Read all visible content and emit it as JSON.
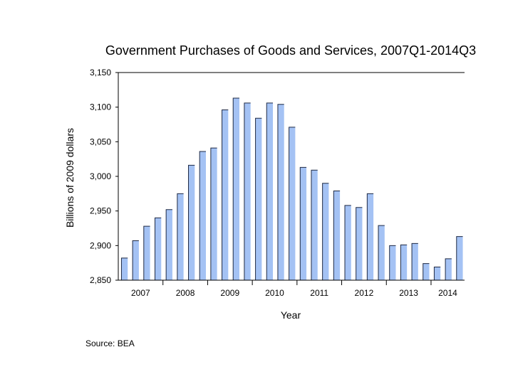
{
  "chart_data": {
    "type": "bar",
    "title": "Government Purchases of Goods and Services, 2007Q1-2014Q3",
    "xlabel": "Year",
    "ylabel": "Billions of 2009 dollars",
    "ylim": [
      2850,
      3150
    ],
    "yticks": [
      2850,
      2900,
      2950,
      3000,
      3050,
      3100,
      3150
    ],
    "ytick_labels": [
      "2,850",
      "2,900",
      "2,950",
      "3,000",
      "3,050",
      "3,100",
      "3,150"
    ],
    "year_labels": [
      "2007",
      "2008",
      "2009",
      "2010",
      "2011",
      "2012",
      "2013",
      "2014"
    ],
    "categories": [
      "2007Q1",
      "2007Q2",
      "2007Q3",
      "2007Q4",
      "2008Q1",
      "2008Q2",
      "2008Q3",
      "2008Q4",
      "2009Q1",
      "2009Q2",
      "2009Q3",
      "2009Q4",
      "2010Q1",
      "2010Q2",
      "2010Q3",
      "2010Q4",
      "2011Q1",
      "2011Q2",
      "2011Q3",
      "2011Q4",
      "2012Q1",
      "2012Q2",
      "2012Q3",
      "2012Q4",
      "2013Q1",
      "2013Q2",
      "2013Q3",
      "2013Q4",
      "2014Q1",
      "2014Q2",
      "2014Q3"
    ],
    "values": [
      2882,
      2907,
      2928,
      2940,
      2952,
      2975,
      3016,
      3036,
      3041,
      3096,
      3113,
      3106,
      3084,
      3106,
      3104,
      3071,
      3013,
      3009,
      2990,
      2979,
      2958,
      2955,
      2975,
      2929,
      2900,
      2901,
      2903,
      2874,
      2869,
      2881,
      2913
    ],
    "grid": false,
    "colors": {
      "bar_fill": "#a4c2f4",
      "bar_edge": "#1f2a44",
      "axis": "#000000"
    }
  },
  "source": "Source: BEA"
}
